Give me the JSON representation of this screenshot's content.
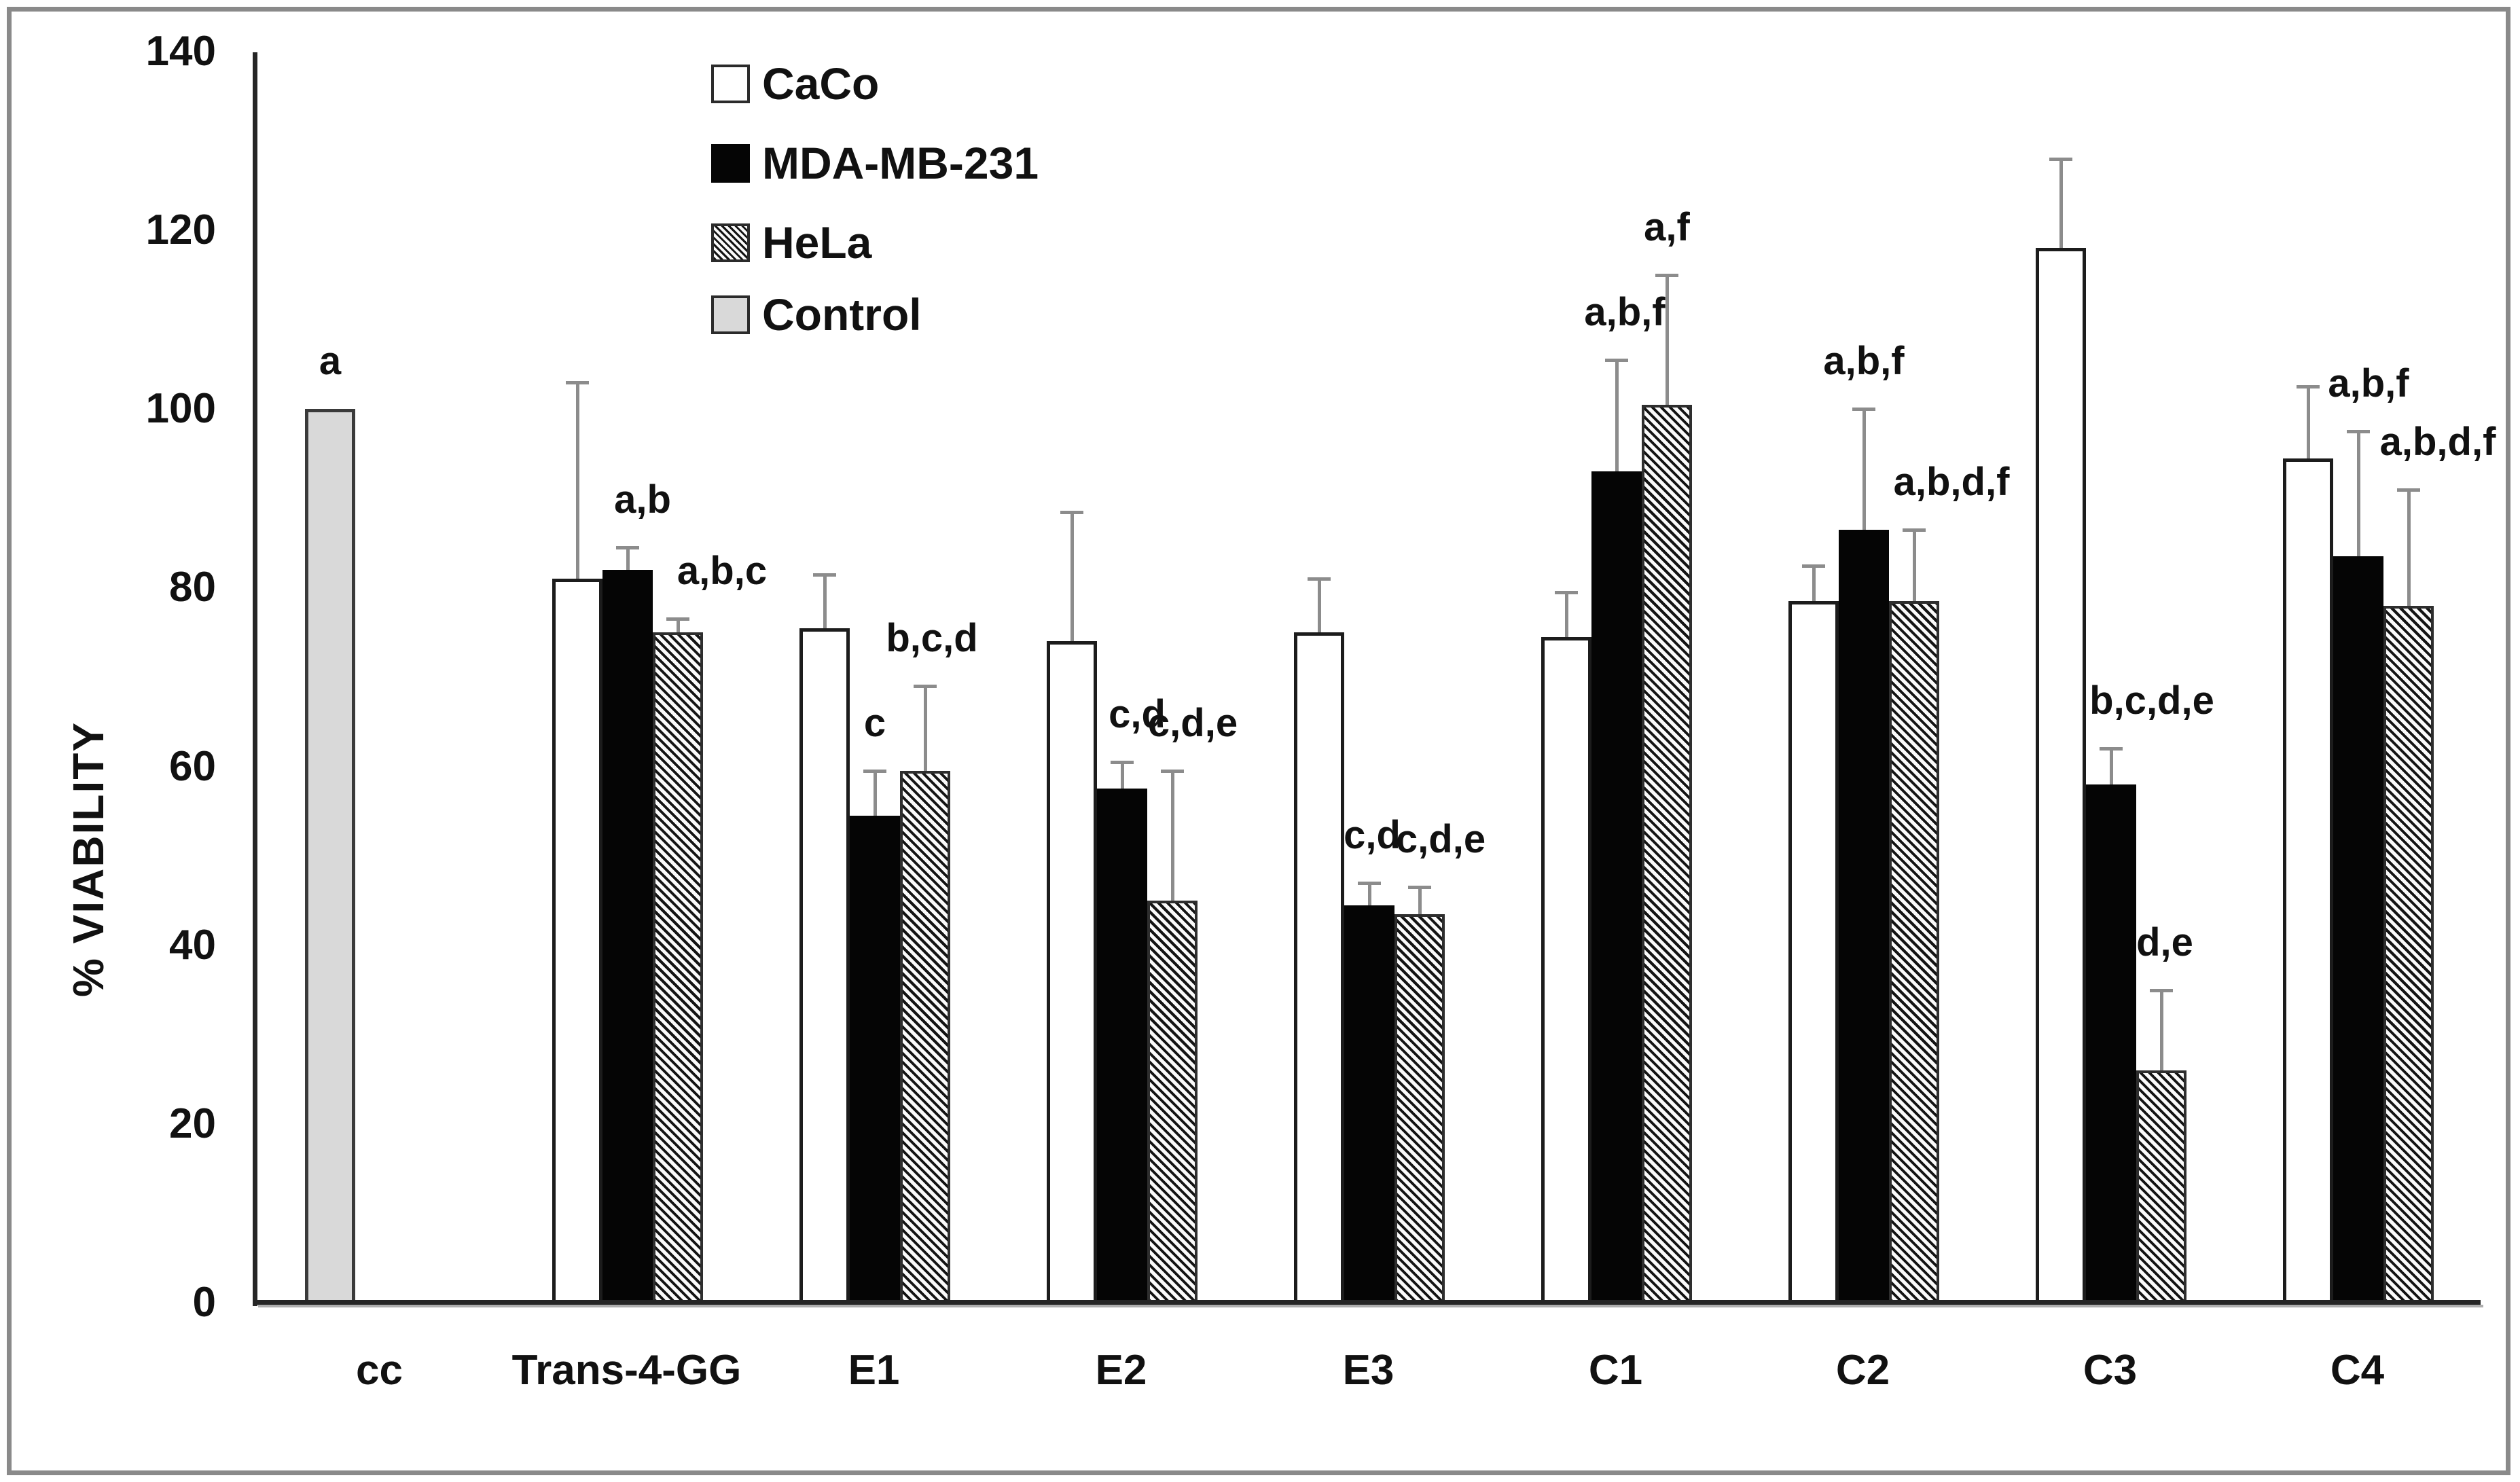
{
  "chart_data": {
    "type": "bar",
    "title": "",
    "xlabel": "",
    "ylabel": "% VIABILITY",
    "ylim": [
      0,
      140
    ],
    "yticks": [
      0,
      20,
      40,
      60,
      80,
      100,
      120,
      140
    ],
    "grid": false,
    "legend_position": "top-center-inside",
    "categories": [
      "cc",
      "Trans-4-GG",
      "E1",
      "E2",
      "E3",
      "C1",
      "C2",
      "C3",
      "C4"
    ],
    "series": [
      {
        "name": "CaCo",
        "swatch": "white",
        "values": [
          null,
          81,
          75.5,
          74,
          75,
          74.5,
          78.5,
          118,
          94.5
        ],
        "errors": [
          null,
          22,
          6,
          14.5,
          6,
          5,
          4,
          10,
          8
        ],
        "annotations": [
          null,
          null,
          null,
          null,
          null,
          null,
          null,
          null,
          null
        ],
        "ann_dx": [
          0,
          0,
          0,
          0,
          0,
          0,
          0,
          0,
          0
        ]
      },
      {
        "name": "MDA-MB-231",
        "swatch": "black",
        "values": [
          null,
          82,
          54.5,
          57.5,
          44.5,
          93,
          86.5,
          58,
          83.5
        ],
        "errors": [
          null,
          2.5,
          5,
          3,
          2.5,
          12.5,
          13.5,
          4,
          14
        ],
        "annotations": [
          null,
          "a,b",
          "c",
          "c,d",
          "c,d",
          "a,b,f",
          "a,b,f",
          "b,c,d,e",
          "a,b,f"
        ],
        "ann_dx": [
          0,
          22,
          0,
          22,
          4,
          12,
          0,
          60,
          15
        ]
      },
      {
        "name": "HeLa",
        "swatch": "hatch",
        "values": [
          null,
          75,
          59.5,
          45,
          43.5,
          100.5,
          78.5,
          26,
          78
        ],
        "errors": [
          null,
          1.5,
          9.5,
          14.5,
          3,
          14.5,
          8,
          9,
          13
        ],
        "annotations": [
          null,
          "a,b,c",
          "b,c,d",
          "c,d,e",
          "c,d,e",
          "a,f",
          "a,b,d,f",
          "d,e",
          "a,b,d,f"
        ],
        "ann_dx": [
          0,
          65,
          10,
          30,
          31,
          0,
          55,
          5,
          43
        ]
      },
      {
        "name": "Control",
        "swatch": "gray",
        "values": [
          100,
          null,
          null,
          null,
          null,
          null,
          null,
          null,
          null
        ],
        "errors": [
          null,
          null,
          null,
          null,
          null,
          null,
          null,
          null,
          null
        ],
        "annotations": [
          "a",
          null,
          null,
          null,
          null,
          null,
          null,
          null,
          null
        ],
        "ann_dx": [
          0,
          0,
          0,
          0,
          0,
          0,
          0,
          0,
          0
        ]
      }
    ],
    "legend": [
      {
        "label": "CaCo",
        "swatch": "white"
      },
      {
        "label": "MDA-MB-231",
        "swatch": "black"
      },
      {
        "label": "HeLa",
        "swatch": "hatch"
      },
      {
        "label": "Control",
        "swatch": "gray"
      }
    ]
  }
}
